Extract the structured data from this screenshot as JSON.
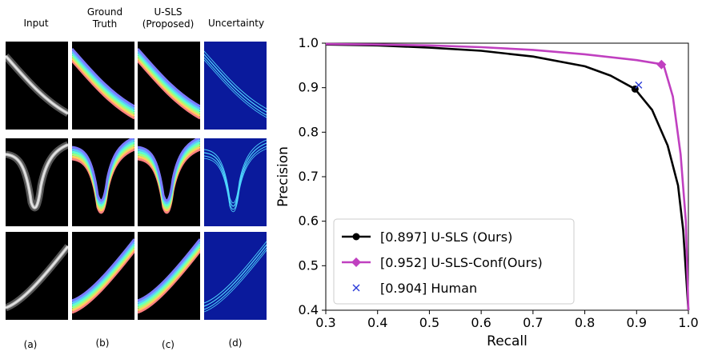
{
  "figure": {
    "column_headers": [
      "Input",
      "Ground\nTruth",
      "U-SLS\n(Proposed)",
      "Uncertainty"
    ],
    "panel_labels": [
      "(a)",
      "(b)",
      "(c)",
      "(d)"
    ],
    "colors": {
      "background_black": "#000000",
      "oct_gray": "#c8c8c8",
      "layer_band": "#7b7bff",
      "uncertainty_bg": "#0a1a9c",
      "uncertainty_hot": "#4fd8ff"
    }
  },
  "chart_data": {
    "type": "line",
    "xlabel": "Recall",
    "ylabel": "Precision",
    "xlim": [
      0.3,
      1.0
    ],
    "ylim": [
      0.4,
      1.0
    ],
    "xticks": [
      "0.3",
      "0.4",
      "0.5",
      "0.6",
      "0.7",
      "0.8",
      "0.9",
      "1.0"
    ],
    "yticks": [
      "0.4",
      "0.5",
      "0.6",
      "0.7",
      "0.8",
      "0.9",
      "1.0"
    ],
    "grid": false,
    "legend_position": "bottom-left",
    "series": [
      {
        "name": "[0.897] U-SLS (Ours)",
        "color": "#000000",
        "marker": "circle",
        "x": [
          0.3,
          0.4,
          0.5,
          0.6,
          0.7,
          0.8,
          0.85,
          0.897,
          0.93,
          0.96,
          0.98,
          0.99,
          1.0
        ],
        "y": [
          0.997,
          0.995,
          0.99,
          0.983,
          0.97,
          0.948,
          0.927,
          0.897,
          0.85,
          0.77,
          0.68,
          0.58,
          0.4
        ],
        "highlight": {
          "x": 0.897,
          "y": 0.897
        }
      },
      {
        "name": "[0.952] U-SLS-Conf(Ours)",
        "color": "#c040c0",
        "marker": "diamond",
        "x": [
          0.3,
          0.4,
          0.5,
          0.6,
          0.7,
          0.8,
          0.9,
          0.952,
          0.97,
          0.985,
          0.995,
          1.0
        ],
        "y": [
          0.998,
          0.997,
          0.995,
          0.991,
          0.985,
          0.975,
          0.962,
          0.952,
          0.88,
          0.75,
          0.6,
          0.4
        ],
        "highlight": {
          "x": 0.948,
          "y": 0.952
        }
      },
      {
        "name": "[0.904] Human",
        "color": "#2a3ad8",
        "marker": "x",
        "x": [
          0.904
        ],
        "y": [
          0.906
        ]
      }
    ]
  }
}
